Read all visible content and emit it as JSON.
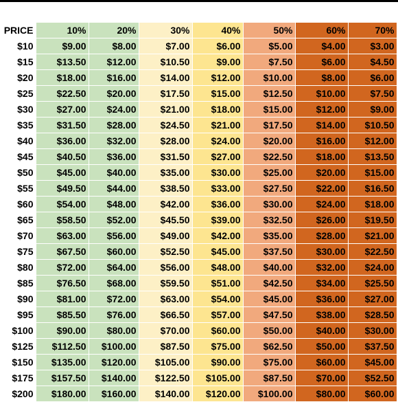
{
  "table": {
    "headers": [
      "PRICE",
      "10%",
      "20%",
      "30%",
      "40%",
      "50%",
      "60%",
      "70%"
    ],
    "rows": [
      [
        "$10",
        "$9.00",
        "$8.00",
        "$7.00",
        "$6.00",
        "$5.00",
        "$4.00",
        "$3.00"
      ],
      [
        "$15",
        "$13.50",
        "$12.00",
        "$10.50",
        "$9.00",
        "$7.50",
        "$6.00",
        "$4.50"
      ],
      [
        "$20",
        "$18.00",
        "$16.00",
        "$14.00",
        "$12.00",
        "$10.00",
        "$8.00",
        "$6.00"
      ],
      [
        "$25",
        "$22.50",
        "$20.00",
        "$17.50",
        "$15.00",
        "$12.50",
        "$10.00",
        "$7.50"
      ],
      [
        "$30",
        "$27.00",
        "$24.00",
        "$21.00",
        "$18.00",
        "$15.00",
        "$12.00",
        "$9.00"
      ],
      [
        "$35",
        "$31.50",
        "$28.00",
        "$24.50",
        "$21.00",
        "$17.50",
        "$14.00",
        "$10.50"
      ],
      [
        "$40",
        "$36.00",
        "$32.00",
        "$28.00",
        "$24.00",
        "$20.00",
        "$16.00",
        "$12.00"
      ],
      [
        "$45",
        "$40.50",
        "$36.00",
        "$31.50",
        "$27.00",
        "$22.50",
        "$18.00",
        "$13.50"
      ],
      [
        "$50",
        "$45.00",
        "$40.00",
        "$35.00",
        "$30.00",
        "$25.00",
        "$20.00",
        "$15.00"
      ],
      [
        "$55",
        "$49.50",
        "$44.00",
        "$38.50",
        "$33.00",
        "$27.50",
        "$22.00",
        "$16.50"
      ],
      [
        "$60",
        "$54.00",
        "$48.00",
        "$42.00",
        "$36.00",
        "$30.00",
        "$24.00",
        "$18.00"
      ],
      [
        "$65",
        "$58.50",
        "$52.00",
        "$45.50",
        "$39.00",
        "$32.50",
        "$26.00",
        "$19.50"
      ],
      [
        "$70",
        "$63.00",
        "$56.00",
        "$49.00",
        "$42.00",
        "$35.00",
        "$28.00",
        "$21.00"
      ],
      [
        "$75",
        "$67.50",
        "$60.00",
        "$52.50",
        "$45.00",
        "$37.50",
        "$30.00",
        "$22.50"
      ],
      [
        "$80",
        "$72.00",
        "$64.00",
        "$56.00",
        "$48.00",
        "$40.00",
        "$32.00",
        "$24.00"
      ],
      [
        "$85",
        "$76.50",
        "$68.00",
        "$59.50",
        "$51.00",
        "$42.50",
        "$34.00",
        "$25.50"
      ],
      [
        "$90",
        "$81.00",
        "$72.00",
        "$63.00",
        "$54.00",
        "$45.00",
        "$36.00",
        "$27.00"
      ],
      [
        "$95",
        "$85.50",
        "$76.00",
        "$66.50",
        "$57.00",
        "$47.50",
        "$38.00",
        "$28.50"
      ],
      [
        "$100",
        "$90.00",
        "$80.00",
        "$70.00",
        "$60.00",
        "$50.00",
        "$40.00",
        "$30.00"
      ],
      [
        "$125",
        "$112.50",
        "$100.00",
        "$87.50",
        "$75.00",
        "$62.50",
        "$50.00",
        "$37.50"
      ],
      [
        "$150",
        "$135.00",
        "$120.00",
        "$105.00",
        "$90.00",
        "$75.00",
        "$60.00",
        "$45.00"
      ],
      [
        "$175",
        "$157.50",
        "$140.00",
        "$122.50",
        "$105.00",
        "$87.50",
        "$70.00",
        "$52.50"
      ],
      [
        "$200",
        "$180.00",
        "$160.00",
        "$140.00",
        "$120.00",
        "$100.00",
        "$80.00",
        "$60.00"
      ]
    ]
  },
  "colors": {
    "green": "#c9e2bd",
    "light_yellow": "#fdf0c6",
    "yellow": "#fde590",
    "light_orange": "#f1a97d",
    "dark_orange": "#d1661f"
  }
}
